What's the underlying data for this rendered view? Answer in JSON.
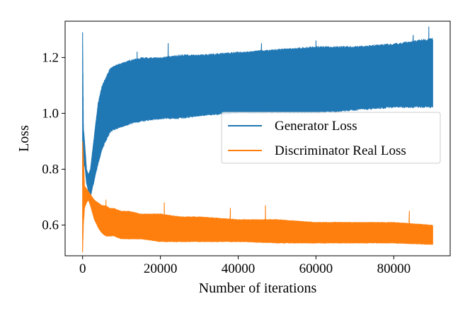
{
  "chart_data": {
    "type": "line",
    "title": "",
    "xlabel": "Number of iterations",
    "ylabel": "Loss",
    "xlim": [
      -4500,
      94500
    ],
    "ylim": [
      0.49,
      1.33
    ],
    "xticks": [
      0,
      20000,
      40000,
      60000,
      80000
    ],
    "xtick_labels": [
      "0",
      "20000",
      "40000",
      "60000",
      "80000"
    ],
    "yticks": [
      0.6,
      0.8,
      1.0,
      1.2
    ],
    "ytick_labels": [
      "0.6",
      "0.8",
      "1.0",
      "1.2"
    ],
    "grid": false,
    "legend_position": "center-right",
    "series": [
      {
        "name": "Generator Loss",
        "color": "#1f77b4",
        "x": [
          0,
          200,
          500,
          1000,
          1500,
          2000,
          3000,
          4000,
          5000,
          6000,
          7000,
          8000,
          10000,
          12000,
          15000,
          20000,
          25000,
          30000,
          40000,
          50000,
          60000,
          70000,
          80000,
          90000
        ],
        "y_low": [
          0.74,
          0.8,
          0.82,
          0.75,
          0.72,
          0.7,
          0.76,
          0.82,
          0.87,
          0.9,
          0.93,
          0.94,
          0.95,
          0.96,
          0.97,
          0.98,
          0.98,
          0.99,
          1.0,
          1.0,
          1.0,
          1.01,
          1.02,
          1.02
        ],
        "y_high": [
          1.29,
          0.95,
          0.9,
          0.8,
          0.78,
          0.8,
          0.92,
          1.04,
          1.1,
          1.13,
          1.16,
          1.17,
          1.18,
          1.19,
          1.2,
          1.2,
          1.21,
          1.21,
          1.22,
          1.23,
          1.24,
          1.24,
          1.25,
          1.27
        ],
        "spikes": [
          [
            0,
            1.29
          ],
          [
            14000,
            1.22
          ],
          [
            22000,
            1.25
          ],
          [
            46000,
            1.25
          ],
          [
            60000,
            1.26
          ],
          [
            85000,
            1.28
          ],
          [
            89000,
            1.31
          ]
        ]
      },
      {
        "name": "Discriminator Real Loss",
        "color": "#ff7f0e",
        "x": [
          0,
          200,
          500,
          1000,
          1500,
          2000,
          3000,
          4000,
          5000,
          6000,
          7000,
          8000,
          10000,
          12000,
          15000,
          20000,
          25000,
          30000,
          40000,
          50000,
          60000,
          70000,
          80000,
          90000
        ],
        "y_low": [
          0.5,
          0.6,
          0.66,
          0.68,
          0.69,
          0.67,
          0.62,
          0.59,
          0.57,
          0.56,
          0.56,
          0.56,
          0.55,
          0.55,
          0.55,
          0.54,
          0.54,
          0.54,
          0.54,
          0.535,
          0.535,
          0.535,
          0.535,
          0.53
        ],
        "y_high": [
          0.9,
          0.84,
          0.74,
          0.73,
          0.72,
          0.71,
          0.69,
          0.68,
          0.67,
          0.67,
          0.66,
          0.66,
          0.65,
          0.65,
          0.64,
          0.64,
          0.63,
          0.63,
          0.62,
          0.62,
          0.61,
          0.61,
          0.61,
          0.6
        ],
        "spikes": [
          [
            0,
            0.9
          ],
          [
            6000,
            0.69
          ],
          [
            21000,
            0.68
          ],
          [
            38000,
            0.66
          ],
          [
            47000,
            0.67
          ],
          [
            84000,
            0.65
          ]
        ]
      }
    ]
  }
}
